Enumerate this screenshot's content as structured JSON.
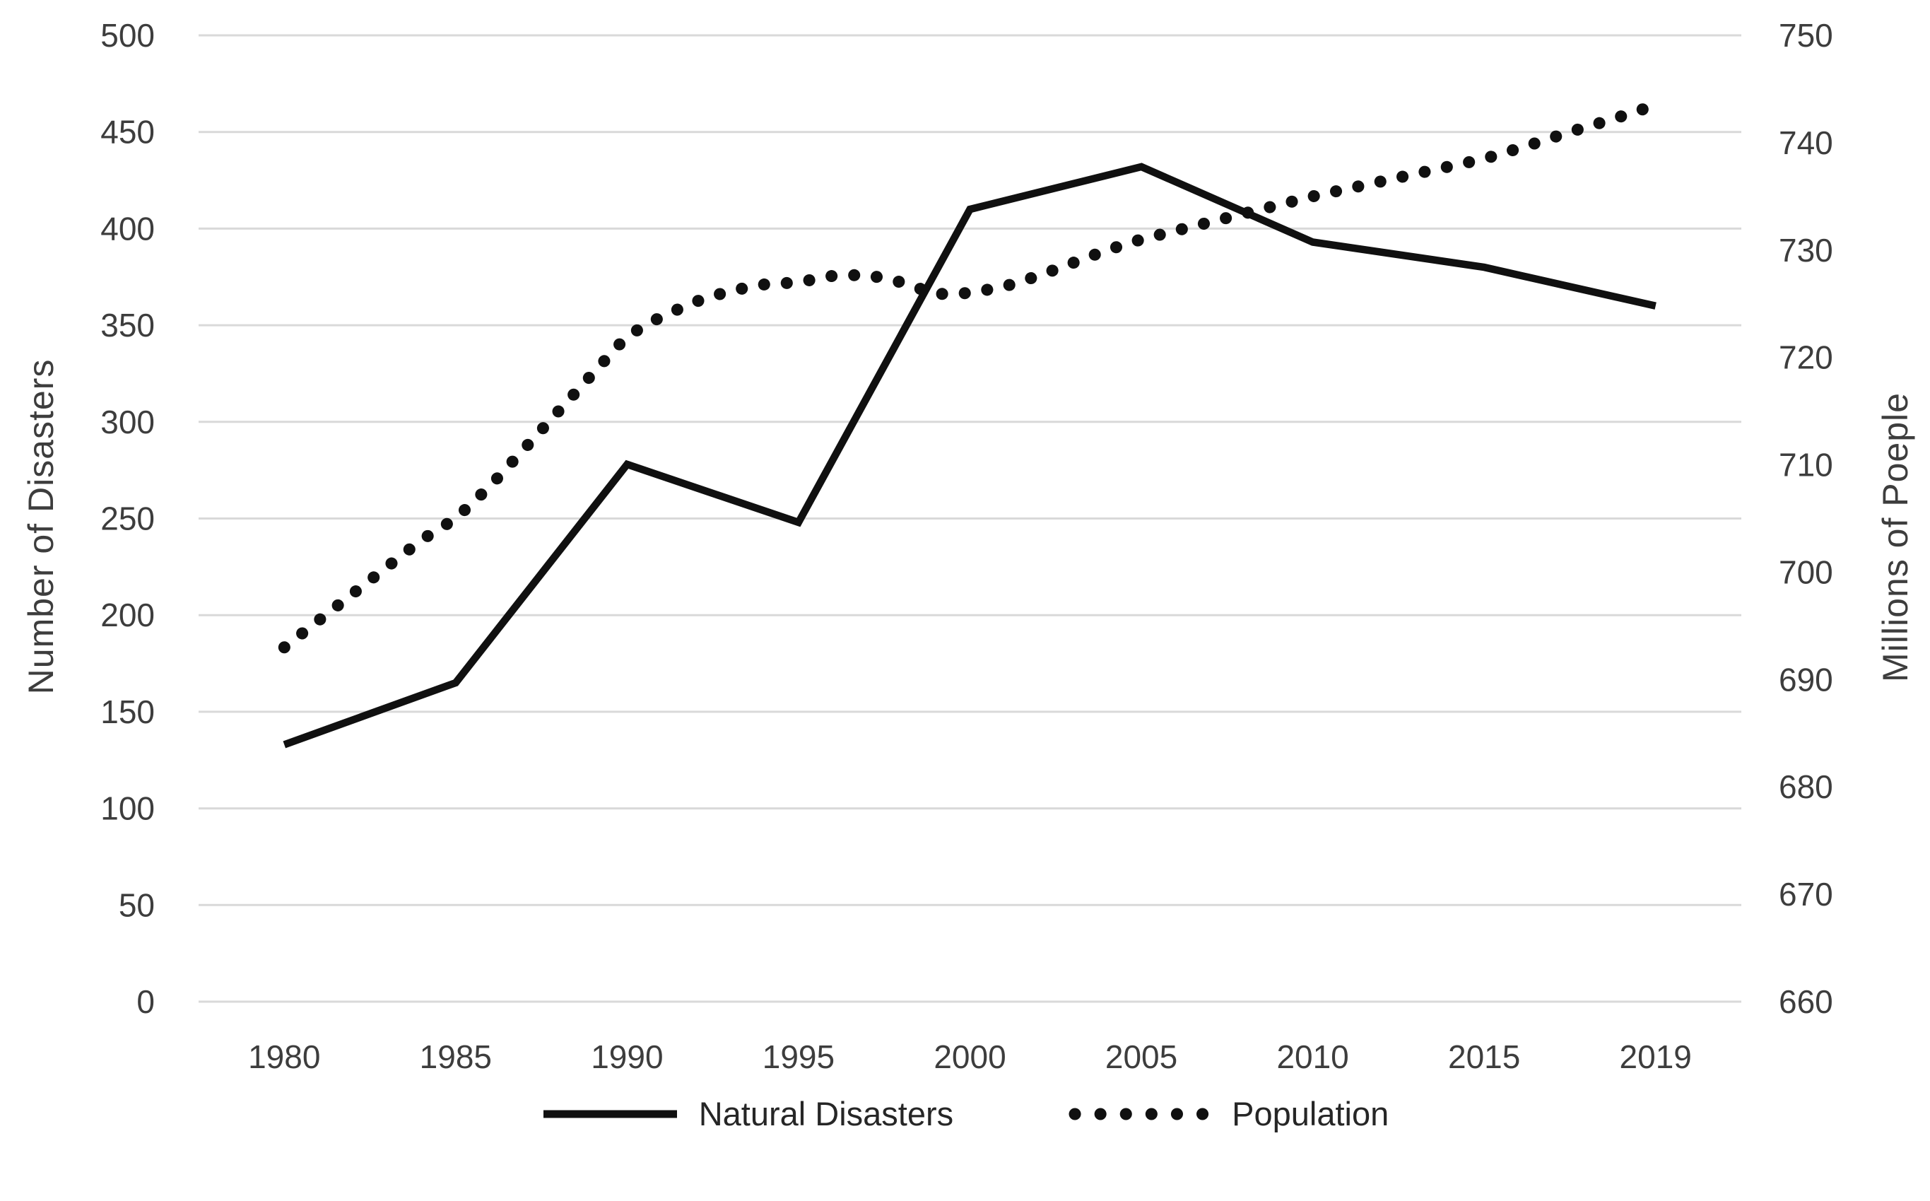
{
  "chart_data": {
    "type": "line",
    "title": "",
    "categories": [
      "1980",
      "1985",
      "1990",
      "1995",
      "2000",
      "2005",
      "2010",
      "2015",
      "2019"
    ],
    "series": [
      {
        "name": "Natural Disasters",
        "axis": "left",
        "line_style": "solid",
        "values": [
          133,
          165,
          278,
          248,
          410,
          432,
          393,
          380,
          360
        ]
      },
      {
        "name": "Population",
        "axis": "right",
        "line_style": "dotted",
        "values": [
          693,
          705,
          722,
          727,
          726,
          731,
          735,
          738.5,
          743.5
        ],
        "fine_points": [
          [
            1980,
            693
          ],
          [
            1981,
            695.5
          ],
          [
            1982,
            698
          ],
          [
            1983,
            700.5
          ],
          [
            1984,
            703
          ],
          [
            1985,
            705
          ],
          [
            1986,
            708
          ],
          [
            1987,
            711.5
          ],
          [
            1988,
            715
          ],
          [
            1989,
            718.5
          ],
          [
            1990,
            722
          ],
          [
            1991,
            723.8
          ],
          [
            1992,
            725.2
          ],
          [
            1993,
            726.2
          ],
          [
            1994,
            726.8
          ],
          [
            1995,
            727
          ],
          [
            1996,
            727.6
          ],
          [
            1997,
            727.7
          ],
          [
            1998,
            727
          ],
          [
            1999,
            725.9
          ],
          [
            2000,
            726
          ],
          [
            2001,
            726.6
          ],
          [
            2002,
            727.6
          ],
          [
            2003,
            728.8
          ],
          [
            2004,
            730
          ],
          [
            2005,
            731
          ],
          [
            2006,
            731.8
          ],
          [
            2007,
            732.6
          ],
          [
            2008,
            733.4
          ],
          [
            2009,
            734.2
          ],
          [
            2010,
            735
          ],
          [
            2011,
            735.7
          ],
          [
            2012,
            736.4
          ],
          [
            2013,
            737.1
          ],
          [
            2014,
            737.8
          ],
          [
            2015,
            738.5
          ],
          [
            2016,
            739.7
          ],
          [
            2017,
            741
          ],
          [
            2018,
            742.2
          ],
          [
            2019,
            743.5
          ]
        ]
      }
    ],
    "left_axis": {
      "title": "Number of Disasters",
      "min": 0,
      "max": 500,
      "tick_step": 50
    },
    "right_axis": {
      "title": "Millions of Poeple",
      "min": 660,
      "max": 750,
      "tick_step": 10
    },
    "x_axis": {
      "tick_labels": [
        "1980",
        "1985",
        "1990",
        "1995",
        "2000",
        "2005",
        "2010",
        "2015",
        "2019"
      ]
    },
    "grid": true,
    "legend_position": "bottom"
  },
  "legend": {
    "natural_disasters": "Natural Disasters",
    "population": "Population"
  },
  "colors": {
    "line": "#101010",
    "grid": "#d9d9d9",
    "text": "#3d3d3d",
    "background": "#ffffff"
  }
}
